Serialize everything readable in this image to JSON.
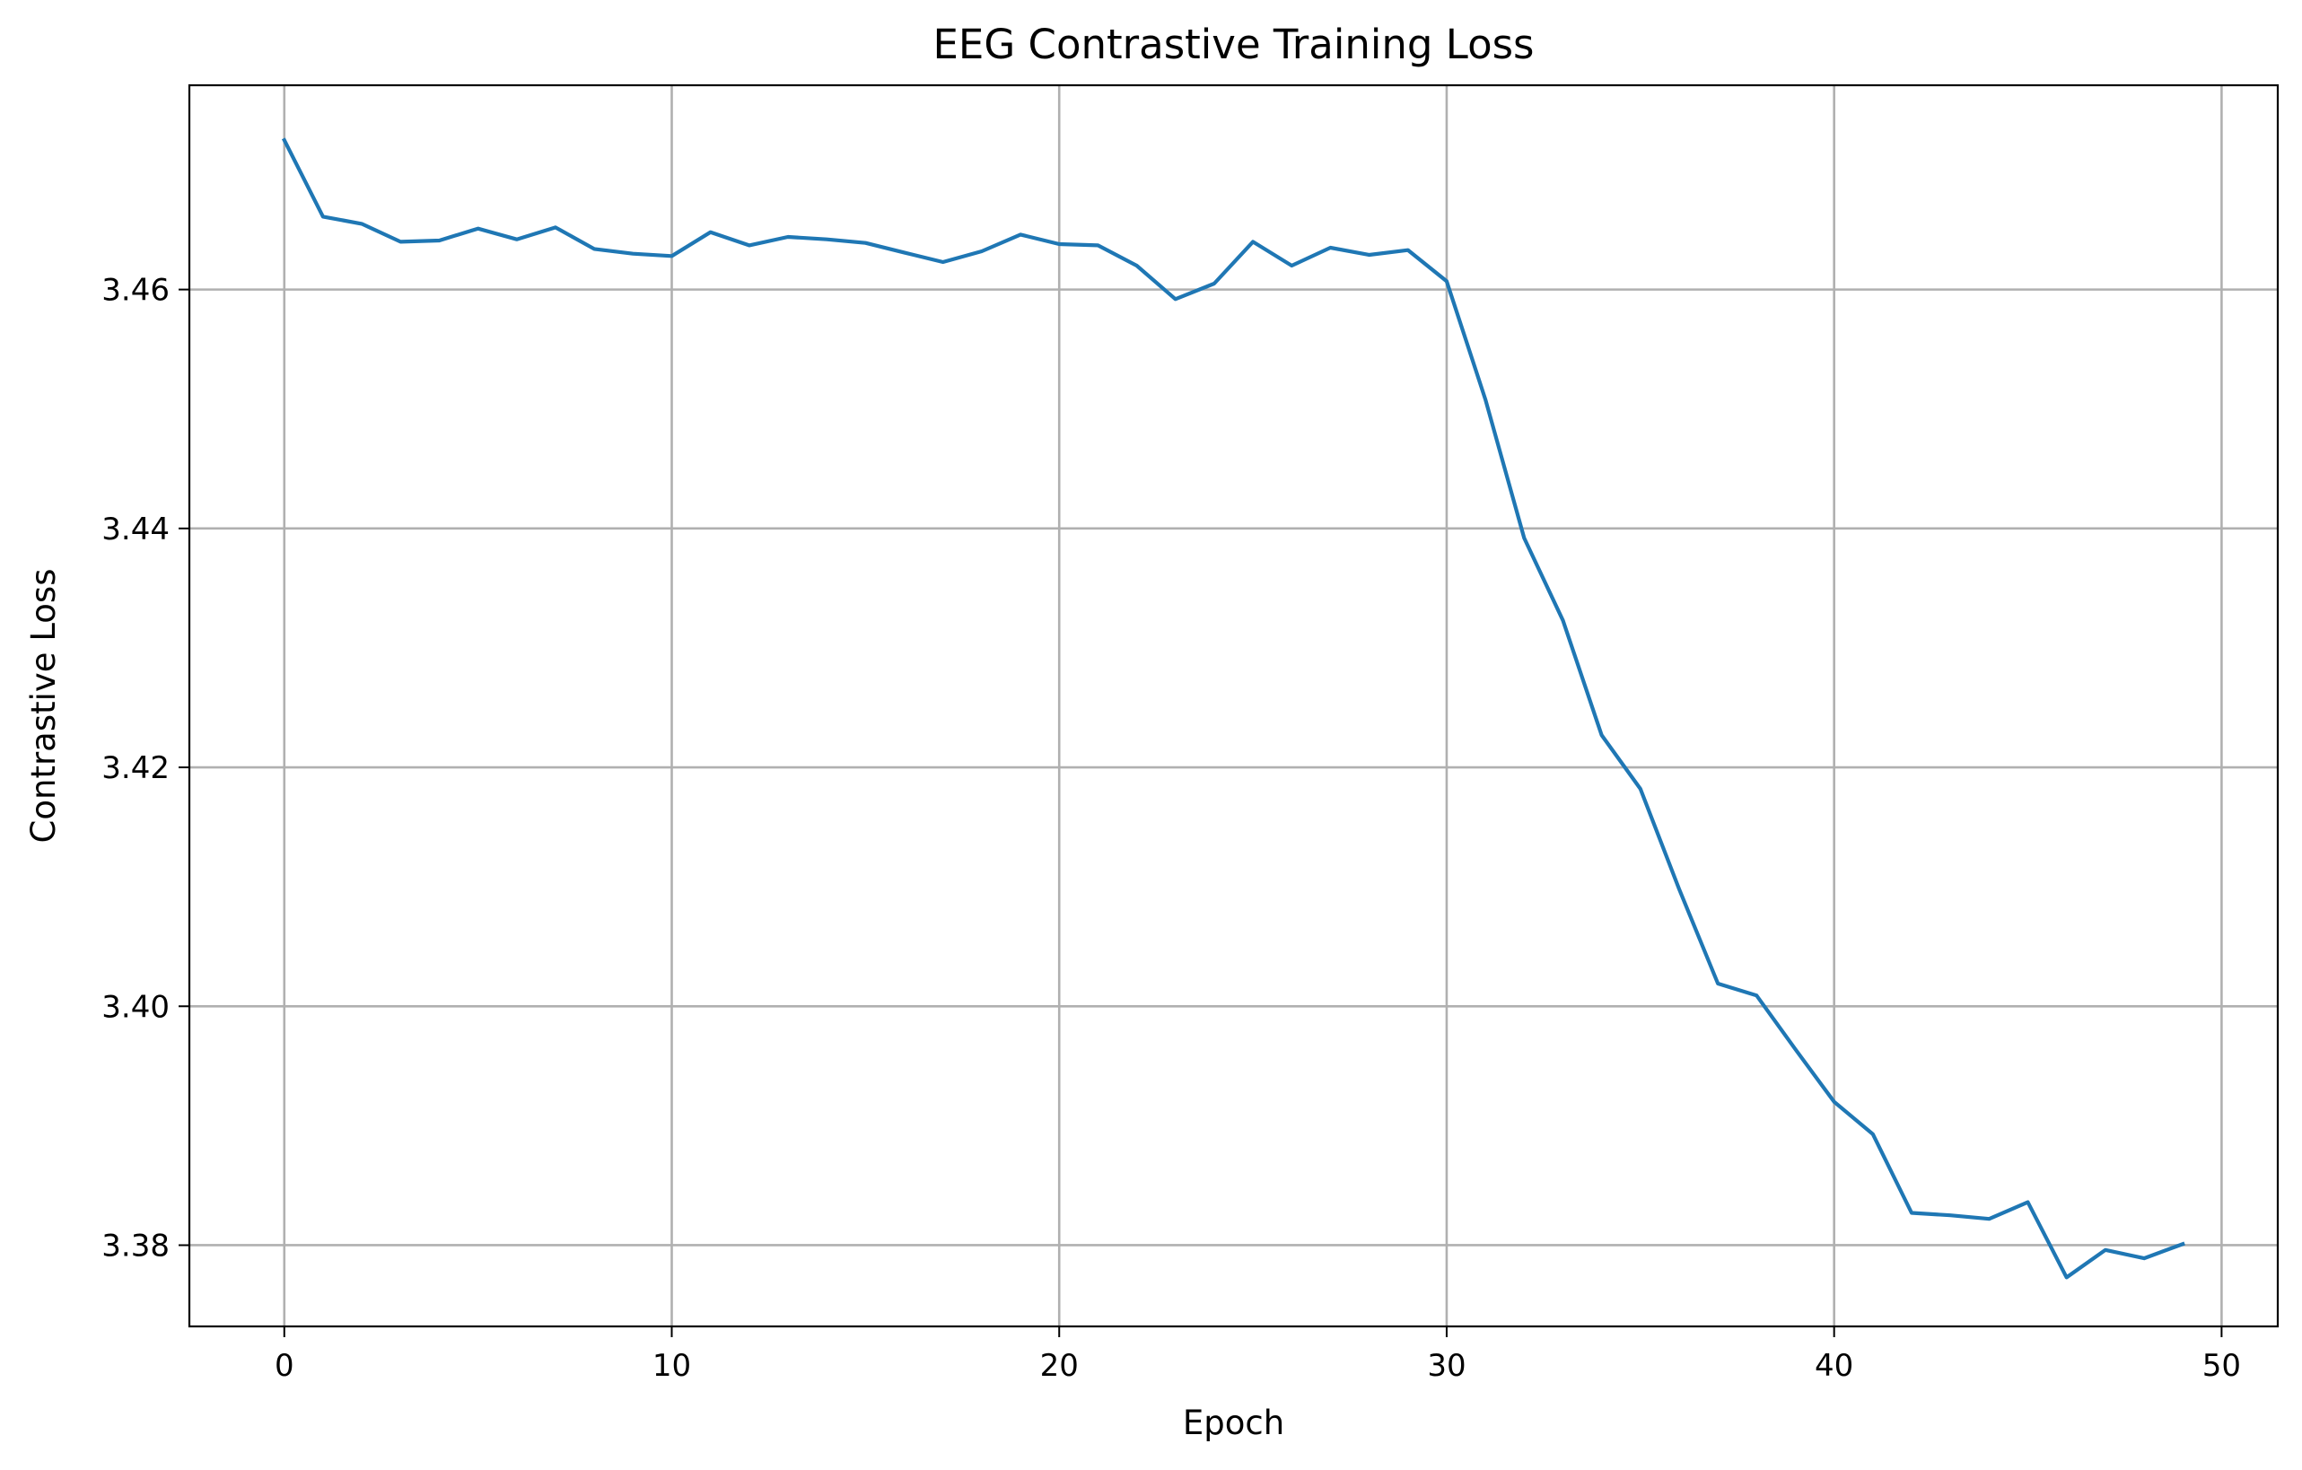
{
  "chart_data": {
    "type": "line",
    "title": "EEG Contrastive Training Loss",
    "xlabel": "Epoch",
    "ylabel": "Contrastive Loss",
    "xlim": [
      -2.45,
      51.45
    ],
    "ylim": [
      3.3732,
      3.4771
    ],
    "xticks": [
      0,
      10,
      20,
      30,
      40,
      50
    ],
    "yticks": [
      3.38,
      3.4,
      3.42,
      3.44,
      3.46
    ],
    "xtick_labels": [
      "0",
      "10",
      "20",
      "30",
      "40",
      "50"
    ],
    "ytick_labels": [
      "3.38",
      "3.40",
      "3.42",
      "3.44",
      "3.46"
    ],
    "grid": true,
    "x": [
      0,
      1,
      2,
      3,
      4,
      5,
      6,
      7,
      8,
      9,
      10,
      11,
      12,
      13,
      14,
      15,
      16,
      17,
      18,
      19,
      20,
      21,
      22,
      23,
      24,
      25,
      26,
      27,
      28,
      29,
      30,
      31,
      32,
      33,
      34,
      35,
      36,
      37,
      38,
      39,
      40,
      41,
      42,
      43,
      44,
      45,
      46,
      47,
      48,
      49
    ],
    "series": [
      {
        "color": "#1f77b4",
        "values": [
          3.4725,
          3.4661,
          3.4655,
          3.464,
          3.4641,
          3.4651,
          3.4642,
          3.4652,
          3.4634,
          3.463,
          3.4628,
          3.4648,
          3.4637,
          3.4644,
          3.4642,
          3.4639,
          3.4631,
          3.4623,
          3.4632,
          3.4646,
          3.4638,
          3.4637,
          3.462,
          3.4592,
          3.4605,
          3.464,
          3.462,
          3.4635,
          3.4629,
          3.4633,
          3.4607,
          3.4508,
          3.4392,
          3.4323,
          3.4227,
          3.4182,
          3.4098,
          3.4019,
          3.4009,
          3.3964,
          3.392,
          3.3893,
          3.3827,
          3.3825,
          3.3822,
          3.3836,
          3.3773,
          3.3796,
          3.3789,
          3.3801
        ]
      }
    ]
  }
}
